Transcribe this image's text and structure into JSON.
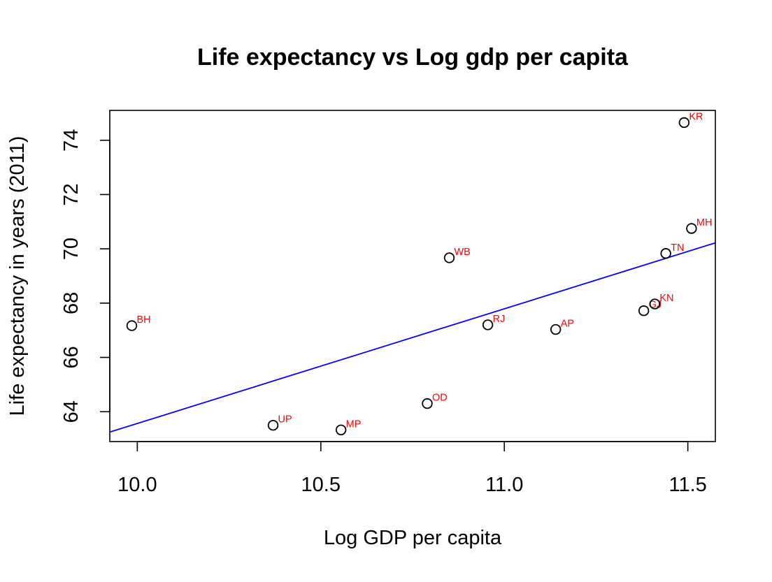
{
  "chart_data": {
    "type": "scatter",
    "title": "Life expectancy vs Log gdp per capita",
    "xlabel": "Log GDP per capita",
    "ylabel": "Life expectancy in years (2011)",
    "xlim": [
      9.925,
      11.575
    ],
    "ylim": [
      62.9,
      75.1
    ],
    "x_ticks": [
      10.0,
      10.5,
      11.0,
      11.5
    ],
    "x_tick_labels": [
      "10.0",
      "10.5",
      "11.0",
      "11.5"
    ],
    "y_ticks": [
      64,
      66,
      68,
      70,
      72,
      74
    ],
    "y_tick_labels": [
      "64",
      "66",
      "68",
      "70",
      "72",
      "74"
    ],
    "grid": false,
    "legend": "none",
    "point_style": "open-circle",
    "point_color": "#000000",
    "label_color": "#ff0000",
    "fit_line": {
      "color": "#0000ff",
      "x": [
        9.925,
        11.575
      ],
      "y": [
        63.25,
        70.22
      ]
    },
    "points": [
      {
        "label": "BH",
        "x": 9.985,
        "y": 67.17
      },
      {
        "label": "UP",
        "x": 10.37,
        "y": 63.5
      },
      {
        "label": "MP",
        "x": 10.555,
        "y": 63.33
      },
      {
        "label": "OD",
        "x": 10.79,
        "y": 64.3
      },
      {
        "label": "WB",
        "x": 10.85,
        "y": 69.67
      },
      {
        "label": "RJ",
        "x": 10.955,
        "y": 67.2
      },
      {
        "label": "AP",
        "x": 11.14,
        "y": 67.03
      },
      {
        "label": "GJ",
        "x": 11.38,
        "y": 67.72
      },
      {
        "label": "KN",
        "x": 11.41,
        "y": 67.97
      },
      {
        "label": "TN",
        "x": 11.44,
        "y": 69.83
      },
      {
        "label": "KR",
        "x": 11.49,
        "y": 74.65
      },
      {
        "label": "MH",
        "x": 11.51,
        "y": 70.75
      }
    ]
  }
}
